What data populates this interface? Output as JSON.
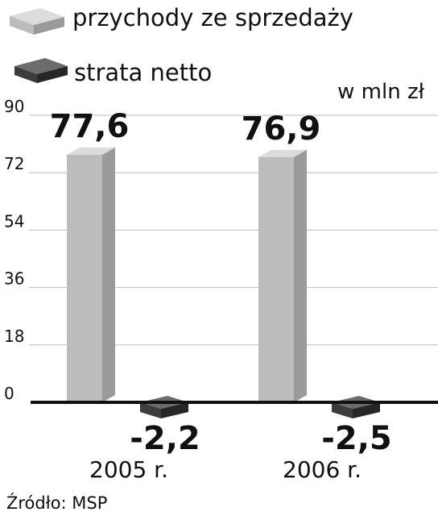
{
  "chart_data": {
    "type": "bar",
    "categories": [
      "2005 r.",
      "2006 r."
    ],
    "series": [
      {
        "name": "przychody ze sprzedaży",
        "values": [
          77.6,
          76.9
        ],
        "labels": [
          "77,6",
          "76,9"
        ]
      },
      {
        "name": "strata netto",
        "values": [
          -2.2,
          -2.5
        ],
        "labels": [
          "-2,2",
          "-2,5"
        ]
      }
    ],
    "unit": "w mln zł",
    "ylim": [
      0,
      90
    ],
    "yticks": [
      0,
      18,
      36,
      54,
      72,
      90
    ],
    "grid": true,
    "legend_position": "top-left"
  },
  "colors": {
    "revenue_front": "#bcbcbc",
    "revenue_side": "#9a9a9a",
    "revenue_top": "#dcdcdc",
    "loss_front": "#3c3c3c",
    "loss_side": "#262626",
    "loss_top": "#6c6c6c"
  },
  "source": "Źródło: MSP"
}
